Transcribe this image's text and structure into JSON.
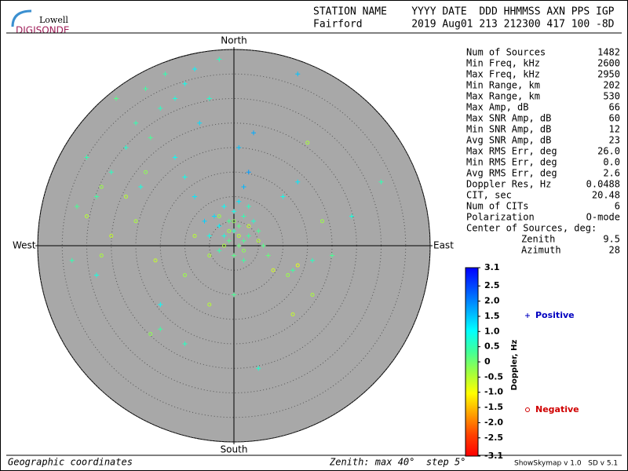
{
  "logo": {
    "top": "Lowell",
    "bottom": "DIGISONDE"
  },
  "header": {
    "line1": "STATION NAME    YYYY DATE  DDD HHMMSS AXN PPS IGP",
    "line2": "Fairford        2019 Aug01 213 212300 417 100 -8D"
  },
  "stats": [
    [
      "Num of Sources",
      "1482"
    ],
    [
      "Min Freq, kHz",
      "2600"
    ],
    [
      "Max Freq, kHz",
      "2950"
    ],
    [
      "Min Range, km",
      "202"
    ],
    [
      "Max Range, km",
      "530"
    ],
    [
      "Max Amp, dB",
      "66"
    ],
    [
      "Max SNR Amp, dB",
      "60"
    ],
    [
      "Min SNR Amp, dB",
      "12"
    ],
    [
      "Avg SNR Amp, dB",
      "23"
    ],
    [
      "Max RMS Err, deg",
      "26.0"
    ],
    [
      "Min RMS Err, deg",
      "0.0"
    ],
    [
      "Avg RMS Err, deg",
      "2.6"
    ],
    [
      "Doppler Res, Hz",
      "0.0488"
    ],
    [
      "CIT, sec",
      "20.48"
    ],
    [
      "Num of CITs",
      "6"
    ],
    [
      "Polarization",
      "O-mode"
    ],
    [
      "Center of Sources, deg:",
      ""
    ]
  ],
  "center": [
    [
      "Zenith",
      "9.5"
    ],
    [
      "Azimuth",
      "28"
    ]
  ],
  "footer": {
    "left": "Geographic coordinates",
    "middle": "Zenith: max 40°  step 5°",
    "right": "ShowSkymap v 1.0   SD v 5.1"
  },
  "chart_data": {
    "type": "skymap",
    "directions": {
      "north": "North",
      "south": "South",
      "west": "West",
      "east": "East"
    },
    "zlim": [
      0,
      40
    ],
    "zticks": [
      5,
      10,
      15,
      20,
      25,
      30,
      35,
      40
    ],
    "colorbar_label": "Doppler, Hz",
    "dlim": [
      -3.1,
      3.1
    ],
    "dticks": [
      3.1,
      2.5,
      {
        "value": 2,
        "label": "2.0"
      },
      1.5,
      {
        "value": 1,
        "label": "1.0"
      },
      0.5,
      0,
      -0.5,
      {
        "value": -1,
        "label": "-1.0"
      },
      -1.5,
      {
        "value": -2,
        "label": "-2.0"
      },
      -2.5,
      -3.1
    ],
    "colormap": [
      "#0000ff",
      "#0050ff",
      "#00a8ff",
      "#00ffff",
      "#40ff9a",
      "#a0ff40",
      "#ffff00",
      "#ffa000",
      "#ff4000",
      "#ff0000"
    ],
    "series": [
      {
        "name": "Positive",
        "marker": "plus",
        "color": "#0000c0",
        "x": [
          -1,
          0,
          1,
          -2,
          2,
          -3,
          3,
          0,
          -1,
          1,
          2,
          -4,
          4,
          -2,
          1,
          3,
          5,
          -5,
          0,
          2,
          -3,
          6,
          7,
          -6,
          2,
          3,
          1,
          4,
          -8,
          -10,
          -15,
          -18,
          -12,
          -20,
          -22,
          -17,
          -25,
          -28,
          -14,
          -10,
          -8,
          -24,
          -30,
          -32,
          -19,
          -12,
          -7,
          -5,
          -3,
          13,
          10,
          12,
          16,
          20,
          -33,
          -28,
          -15,
          -10,
          0,
          5,
          -15,
          30,
          24,
          13
        ],
        "y": [
          5,
          3,
          4,
          2,
          6,
          4,
          2,
          7,
          1,
          0,
          1,
          6,
          5,
          8,
          9,
          8,
          3,
          2,
          -2,
          -3,
          -1,
          0,
          -2,
          5,
          12,
          15,
          20,
          23,
          10,
          14,
          28,
          32,
          30,
          25,
          20,
          22,
          15,
          10,
          35,
          33,
          36,
          30,
          18,
          8,
          12,
          18,
          25,
          30,
          38,
          35,
          10,
          -5,
          -3,
          -2,
          -3,
          -6,
          -12,
          -20,
          -10,
          -25,
          -17,
          13,
          6,
          13
        ],
        "doppler": [
          0.3,
          0.6,
          0.2,
          0.8,
          0.5,
          1.1,
          0.4,
          0.9,
          0.2,
          0.1,
          0.3,
          1.3,
          0.7,
          1.0,
          1.2,
          0.6,
          0.3,
          0.9,
          0.2,
          0.4,
          0.5,
          0.2,
          0.1,
          1.4,
          1.6,
          1.8,
          1.5,
          1.7,
          1.2,
          0.9,
          0.6,
          0.4,
          0.8,
          0.5,
          0.7,
          0.3,
          0.6,
          0.4,
          0.5,
          0.9,
          1.1,
          0.2,
          0.5,
          0.3,
          0.8,
          1.0,
          1.3,
          0.7,
          0.6,
          1.5,
          0.9,
          0.4,
          0.6,
          0.3,
          0.5,
          0.8,
          1.0,
          0.6,
          0.3,
          0.7,
          0.4,
          0.5,
          0.8,
          1.2
        ]
      },
      {
        "name": "Negative",
        "marker": "circle",
        "color": "#d00000",
        "x": [
          -1,
          1,
          0,
          -2,
          3,
          -3,
          2,
          5,
          -5,
          8,
          11,
          13,
          -20,
          -25,
          -30,
          -27,
          -18,
          -22,
          -27,
          -16,
          -10,
          -5,
          16,
          12,
          18,
          15,
          -17,
          -8
        ],
        "y": [
          3,
          2,
          5,
          0,
          4,
          6,
          -1,
          1,
          -2,
          -5,
          -6,
          -4,
          5,
          2,
          6,
          12,
          15,
          10,
          -2,
          -3,
          -6,
          -12,
          -10,
          -14,
          5,
          21,
          -18,
          2
        ],
        "doppler": [
          -0.3,
          -0.5,
          -0.2,
          -0.4,
          -0.6,
          -0.3,
          -0.2,
          -0.5,
          -0.4,
          -0.7,
          -0.3,
          -0.8,
          -0.4,
          -0.6,
          -0.5,
          -0.3,
          -0.2,
          -0.5,
          -0.4,
          -0.6,
          -0.3,
          -0.5,
          -0.4,
          -0.6,
          -0.3,
          -0.4,
          -0.2,
          -0.5
        ]
      }
    ]
  }
}
